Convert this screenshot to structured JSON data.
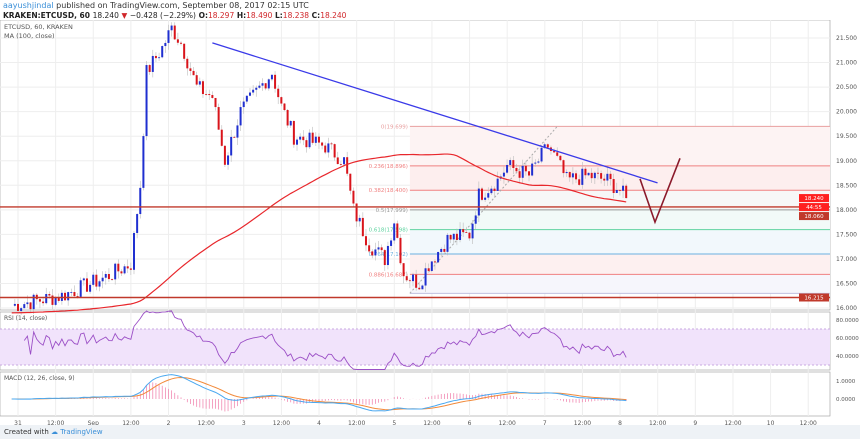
{
  "header": {
    "user": "aayushjindal",
    "published": "published on TradingView.com, September 08, 2017 02:15 UTC",
    "symbol": "KRAKEN:ETCUSD, 60",
    "last": "18.240",
    "change": "−0.428 (−2.29%)",
    "o_label": "O:",
    "o": "18.297",
    "h_label": "H:",
    "h": "18.490",
    "l_label": "L:",
    "l": "18.238",
    "c_label": "C:",
    "c": "18.240"
  },
  "footer": {
    "created": "Created with",
    "brand": "TradingView"
  },
  "colors": {
    "up": "#1f2fd0",
    "down": "#d9141b",
    "ma": "#e8272c",
    "trend": "#3a3ae8",
    "rsi": "#9b4fc6",
    "macd": "#4aa8f0",
    "signal": "#f28a3a",
    "hline": "#c0392b",
    "drawing": "#8b1a2b"
  },
  "chart_data": [
    {
      "type": "candlestick",
      "title": "ETCUSD, 60, KRAKEN",
      "indicator": "MA (100, close)",
      "ylim": [
        16.0,
        21.6
      ],
      "yticks": [
        "21.500",
        "21.000",
        "20.500",
        "20.000",
        "19.500",
        "19.000",
        "18.500",
        "18.000",
        "17.500",
        "17.000",
        "16.500",
        "16.000"
      ],
      "xticks": [
        "31",
        "12:00",
        "Sep",
        "12:00",
        "2",
        "12:00",
        "3",
        "12:00",
        "4",
        "12:00",
        "5",
        "12:00",
        "6",
        "12:00",
        "7",
        "12:00",
        "8",
        "12:00",
        "9",
        "12:00",
        "10",
        "12:00"
      ],
      "approx_close": [
        [
          "08-30 22:00",
          16.05
        ],
        [
          "08-31 14:00",
          16.25
        ],
        [
          "09-01 03:00",
          16.6
        ],
        [
          "09-01 12:00",
          16.9
        ],
        [
          "09-01 15:00",
          18.5
        ],
        [
          "09-01 17:00",
          20.8
        ],
        [
          "09-01 22:00",
          21.3
        ],
        [
          "09-02 01:00",
          21.7
        ],
        [
          "09-02 04:00",
          21.4
        ],
        [
          "09-02 09:00",
          20.5
        ],
        [
          "09-02 14:00",
          20.3
        ],
        [
          "09-02 18:00",
          19.0
        ],
        [
          "09-02 23:00",
          20.0
        ],
        [
          "09-03 04:00",
          20.4
        ],
        [
          "09-03 09:00",
          20.8
        ],
        [
          "09-03 12:00",
          20.1
        ],
        [
          "09-03 16:00",
          19.5
        ],
        [
          "09-03 21:00",
          19.4
        ],
        [
          "09-04 02:00",
          19.3
        ],
        [
          "09-04 08:00",
          19.0
        ],
        [
          "09-04 11:00",
          18.0
        ],
        [
          "09-04 16:00",
          17.3
        ],
        [
          "09-04 21:00",
          17.0
        ],
        [
          "09-05 00:00",
          17.8
        ],
        [
          "09-05 03:00",
          16.7
        ],
        [
          "09-05 08:00",
          16.5
        ],
        [
          "09-05 11:00",
          16.9
        ],
        [
          "09-05 17:00",
          17.4
        ],
        [
          "09-06 00:00",
          17.5
        ],
        [
          "09-06 03:00",
          18.3
        ],
        [
          "09-06 09:00",
          18.6
        ],
        [
          "09-06 12:00",
          18.9
        ],
        [
          "09-06 19:00",
          18.7
        ],
        [
          "09-07 01:00",
          19.3
        ],
        [
          "09-07 04:00",
          19.0
        ],
        [
          "09-07 07:00",
          18.6
        ],
        [
          "09-07 14:00",
          18.7
        ],
        [
          "09-07 20:00",
          18.6
        ],
        [
          "09-08 00:00",
          18.4
        ],
        [
          "09-08 02:00",
          18.24
        ]
      ],
      "trendline": [
        [
          "09-02 14:00",
          21.4
        ],
        [
          "09-08 12:00",
          18.55
        ]
      ],
      "fib_levels": [
        {
          "label": "0(19.699)",
          "value": 19.699
        },
        {
          "label": "0.236(18.896)",
          "value": 18.896
        },
        {
          "label": "0.382(18.400)",
          "value": 18.4
        },
        {
          "label": "0.5(17.999)",
          "value": 17.999
        },
        {
          "label": "0.618(17.598)",
          "value": 17.598
        },
        {
          "label": "0.764(17.102)",
          "value": 17.102
        },
        {
          "label": "0.886(16.687)",
          "value": 16.687
        },
        {
          "label": "",
          "value": 16.3
        }
      ],
      "horizontal_lines": [
        18.06,
        16.215
      ],
      "price_labels": [
        {
          "text": "18.240",
          "value": 18.24,
          "color": "#ff2020"
        },
        {
          "text": "44:55",
          "value": 18.15,
          "color": "#ff2020"
        },
        {
          "text": "18.060",
          "value": 18.06,
          "color": "#c0392b"
        },
        {
          "text": "16.215",
          "value": 16.215,
          "color": "#c0392b"
        }
      ]
    },
    {
      "type": "line",
      "title": "RSI (14, close)",
      "yticks": [
        "80.0000",
        "60.0000",
        "40.0000"
      ],
      "band": [
        30,
        70
      ]
    },
    {
      "type": "line",
      "title": "MACD (12, 26, close, 9)",
      "yticks": [
        "1.0000",
        "0.0000"
      ]
    }
  ]
}
